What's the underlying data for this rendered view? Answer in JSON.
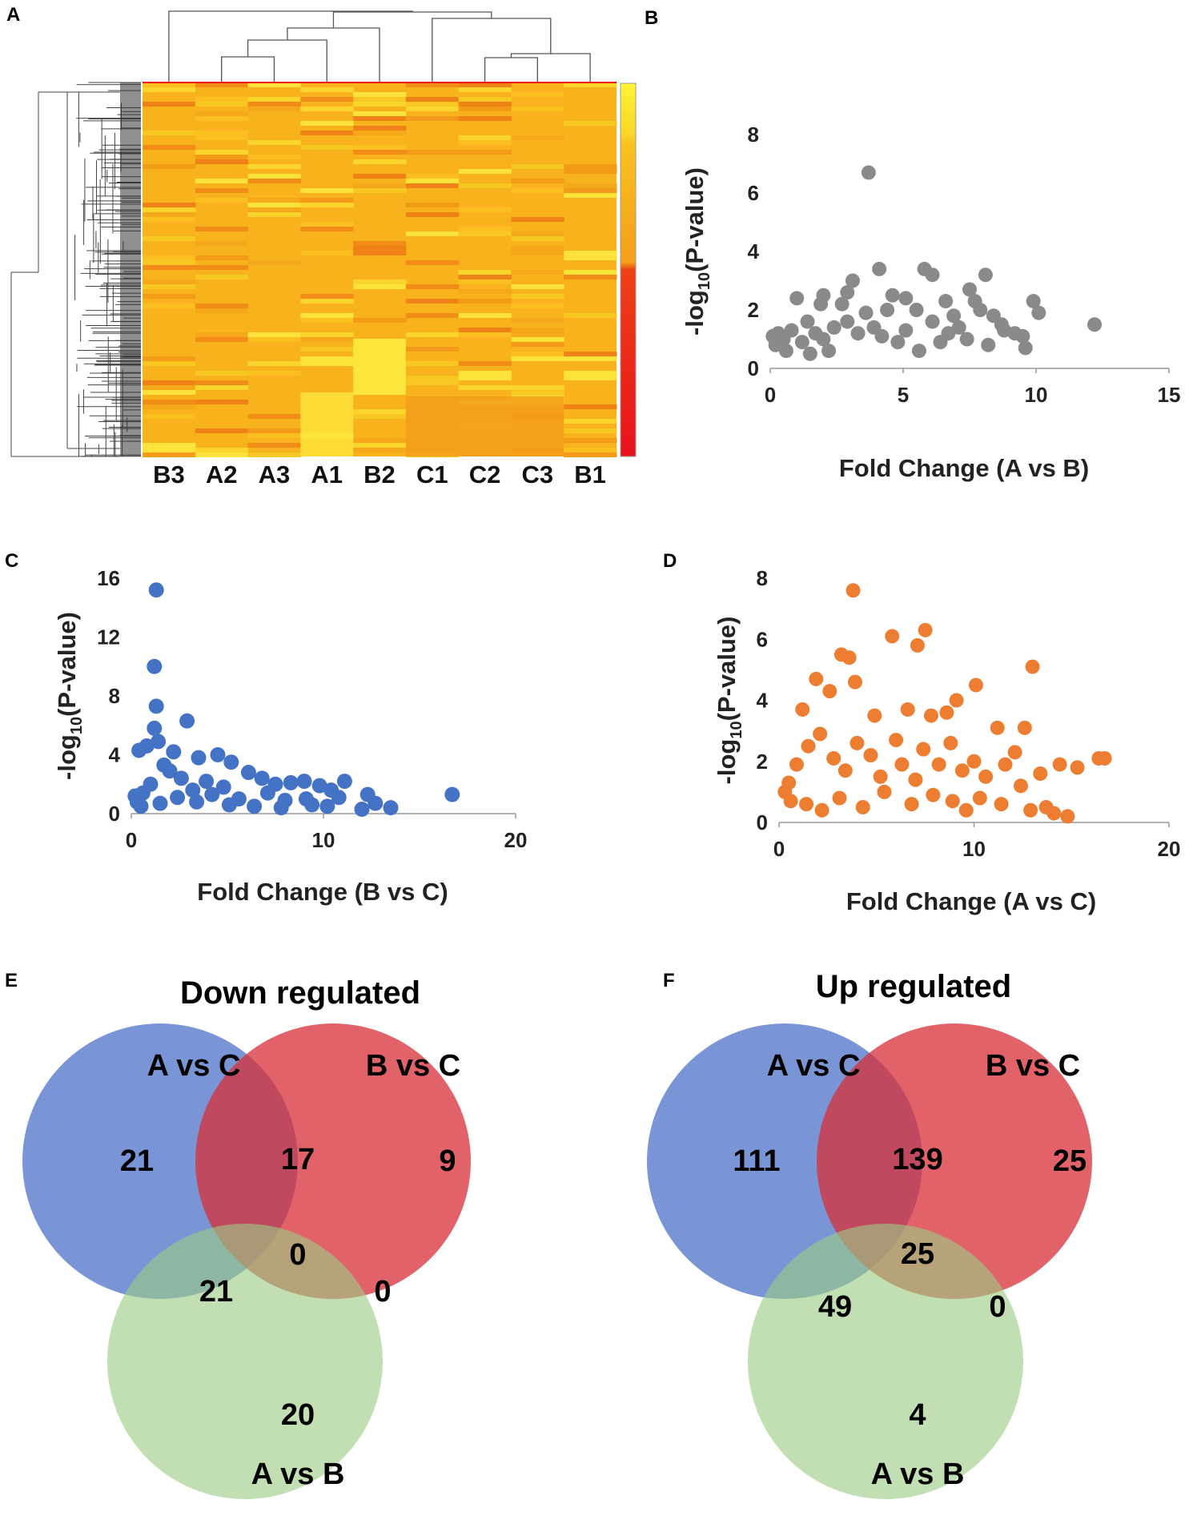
{
  "panel_labels": {
    "A": "A",
    "B": "B",
    "C": "C",
    "D": "D",
    "E": "E",
    "F": "F"
  },
  "colors": {
    "gray": "#8a8a8a",
    "blue": "#4472c4",
    "orange": "#ed7d31",
    "venn_blue": "#4f74c9",
    "venn_red": "#d8303a",
    "venn_green": "#9bcc84",
    "heat_low": "#e8121c",
    "heat_mid": "#f59e1a",
    "heat_high": "#fff433"
  },
  "chart_data": [
    {
      "id": "A",
      "type": "heatmap",
      "title": "",
      "columns": [
        "B3",
        "A2",
        "A3",
        "A1",
        "B2",
        "C1",
        "C2",
        "C3",
        "B1"
      ],
      "column_dendrogram_order": [
        "B3",
        "A2",
        "A3",
        "A1",
        "B2",
        "C1",
        "C2",
        "C3",
        "B1"
      ],
      "color_scale": [
        "#e8121c",
        "#f59e1a",
        "#fff433"
      ],
      "values": []
    },
    {
      "id": "B",
      "type": "scatter",
      "title": "",
      "xlabel": "Fold Change (A vs B)",
      "ylabel_main": "-log",
      "ylabel_sub": "10",
      "ylabel_tail": "(P-value)",
      "xlim": [
        0,
        15
      ],
      "ylim": [
        0,
        8
      ],
      "xticks": [
        0,
        5,
        10,
        15
      ],
      "yticks": [
        0,
        2,
        4,
        6,
        8
      ],
      "color": "#8a8a8a",
      "points": [
        [
          3.7,
          6.7
        ],
        [
          4.1,
          3.4
        ],
        [
          5.8,
          3.4
        ],
        [
          6.1,
          3.2
        ],
        [
          8.1,
          3.2
        ],
        [
          3.1,
          3.0
        ],
        [
          2.9,
          2.6
        ],
        [
          7.5,
          2.7
        ],
        [
          12.2,
          1.5
        ],
        [
          9.9,
          2.3
        ],
        [
          10.1,
          1.9
        ],
        [
          9.6,
          0.7
        ],
        [
          9.5,
          1.1
        ],
        [
          8.4,
          1.8
        ],
        [
          7.7,
          2.3
        ],
        [
          7.9,
          2.0
        ],
        [
          6.6,
          2.3
        ],
        [
          6.9,
          1.8
        ],
        [
          5.1,
          2.4
        ],
        [
          4.6,
          2.5
        ],
        [
          2.0,
          2.5
        ],
        [
          1.0,
          2.4
        ],
        [
          1.9,
          2.2
        ],
        [
          2.2,
          0.6
        ],
        [
          2.7,
          2.2
        ],
        [
          3.6,
          1.9
        ],
        [
          4.4,
          2.0
        ],
        [
          5.5,
          2.0
        ],
        [
          6.1,
          1.6
        ],
        [
          7.1,
          1.4
        ],
        [
          8.7,
          1.5
        ],
        [
          9.2,
          1.2
        ],
        [
          4.8,
          0.9
        ],
        [
          5.6,
          0.6
        ],
        [
          6.4,
          0.9
        ],
        [
          7.4,
          1.0
        ],
        [
          8.2,
          0.8
        ],
        [
          3.3,
          1.2
        ],
        [
          2.4,
          1.4
        ],
        [
          1.4,
          1.6
        ],
        [
          1.2,
          0.9
        ],
        [
          0.8,
          1.3
        ],
        [
          0.5,
          1.0
        ],
        [
          0.3,
          1.2
        ],
        [
          0.2,
          0.8
        ],
        [
          0.1,
          1.1
        ],
        [
          0.6,
          0.6
        ],
        [
          1.5,
          0.5
        ],
        [
          1.7,
          1.2
        ],
        [
          2.0,
          1.0
        ],
        [
          2.9,
          1.6
        ],
        [
          3.9,
          1.4
        ],
        [
          4.2,
          1.1
        ],
        [
          5.1,
          1.3
        ],
        [
          6.7,
          1.2
        ],
        [
          8.8,
          1.3
        ]
      ]
    },
    {
      "id": "C",
      "type": "scatter",
      "title": "",
      "xlabel": "Fold Change (B vs C)",
      "ylabel_main": "-log",
      "ylabel_sub": "10",
      "ylabel_tail": "(P-value)",
      "xlim": [
        0,
        20
      ],
      "ylim": [
        0,
        16
      ],
      "xticks": [
        0,
        10,
        20
      ],
      "yticks": [
        0,
        4,
        8,
        12,
        16
      ],
      "color": "#4472c4",
      "points": [
        [
          1.3,
          15.2
        ],
        [
          1.2,
          10.0
        ],
        [
          1.3,
          7.3
        ],
        [
          2.9,
          6.3
        ],
        [
          1.2,
          5.8
        ],
        [
          1.4,
          4.9
        ],
        [
          0.8,
          4.6
        ],
        [
          0.4,
          4.3
        ],
        [
          2.2,
          4.2
        ],
        [
          3.5,
          3.8
        ],
        [
          4.5,
          4.0
        ],
        [
          5.2,
          3.5
        ],
        [
          6.1,
          2.8
        ],
        [
          6.8,
          2.4
        ],
        [
          7.5,
          2.0
        ],
        [
          8.3,
          2.1
        ],
        [
          9.0,
          2.2
        ],
        [
          9.8,
          1.9
        ],
        [
          10.4,
          1.6
        ],
        [
          11.1,
          2.2
        ],
        [
          12.3,
          1.3
        ],
        [
          12.7,
          0.7
        ],
        [
          13.5,
          0.4
        ],
        [
          12.0,
          0.3
        ],
        [
          16.7,
          1.3
        ],
        [
          10.8,
          1.1
        ],
        [
          9.4,
          0.6
        ],
        [
          8.0,
          0.9
        ],
        [
          7.1,
          1.4
        ],
        [
          5.6,
          1.0
        ],
        [
          4.8,
          1.8
        ],
        [
          3.9,
          2.2
        ],
        [
          3.2,
          1.6
        ],
        [
          2.6,
          2.4
        ],
        [
          2.0,
          2.9
        ],
        [
          1.7,
          3.3
        ],
        [
          1.0,
          2.0
        ],
        [
          0.6,
          1.4
        ],
        [
          0.3,
          0.8
        ],
        [
          0.2,
          1.2
        ],
        [
          0.5,
          0.5
        ],
        [
          1.5,
          0.7
        ],
        [
          2.4,
          1.1
        ],
        [
          3.4,
          0.8
        ],
        [
          4.2,
          1.3
        ],
        [
          5.1,
          0.6
        ],
        [
          6.4,
          0.5
        ],
        [
          7.8,
          0.4
        ],
        [
          9.1,
          1.0
        ],
        [
          10.2,
          0.5
        ]
      ]
    },
    {
      "id": "D",
      "type": "scatter",
      "title": "",
      "xlabel": "Fold Change (A vs C)",
      "ylabel_main": "-log",
      "ylabel_sub": "10",
      "ylabel_tail": "(P-value)",
      "xlim": [
        0,
        20
      ],
      "ylim": [
        0,
        8
      ],
      "xticks": [
        0,
        10,
        20
      ],
      "yticks": [
        0,
        2,
        4,
        6,
        8
      ],
      "color": "#ed7d31",
      "points": [
        [
          3.8,
          7.6
        ],
        [
          7.5,
          6.3
        ],
        [
          5.8,
          6.1
        ],
        [
          7.1,
          5.8
        ],
        [
          3.2,
          5.5
        ],
        [
          3.6,
          5.4
        ],
        [
          13.0,
          5.1
        ],
        [
          1.9,
          4.7
        ],
        [
          2.6,
          4.3
        ],
        [
          3.9,
          4.6
        ],
        [
          10.1,
          4.5
        ],
        [
          9.1,
          4.0
        ],
        [
          1.2,
          3.7
        ],
        [
          4.9,
          3.5
        ],
        [
          6.6,
          3.7
        ],
        [
          7.8,
          3.5
        ],
        [
          8.6,
          3.6
        ],
        [
          11.2,
          3.1
        ],
        [
          12.6,
          3.1
        ],
        [
          12.1,
          2.3
        ],
        [
          16.4,
          2.1
        ],
        [
          16.7,
          2.1
        ],
        [
          15.3,
          1.8
        ],
        [
          14.4,
          1.9
        ],
        [
          14.8,
          0.2
        ],
        [
          14.1,
          0.3
        ],
        [
          13.7,
          0.5
        ],
        [
          12.9,
          0.4
        ],
        [
          11.4,
          0.6
        ],
        [
          10.3,
          0.8
        ],
        [
          9.6,
          0.4
        ],
        [
          8.9,
          0.7
        ],
        [
          7.9,
          0.9
        ],
        [
          6.8,
          0.6
        ],
        [
          5.4,
          1.0
        ],
        [
          4.3,
          0.5
        ],
        [
          3.1,
          0.8
        ],
        [
          2.2,
          0.4
        ],
        [
          1.4,
          0.6
        ],
        [
          0.6,
          0.7
        ],
        [
          0.3,
          1.0
        ],
        [
          0.5,
          1.3
        ],
        [
          0.9,
          1.9
        ],
        [
          1.5,
          2.5
        ],
        [
          2.1,
          2.9
        ],
        [
          2.8,
          2.1
        ],
        [
          3.4,
          1.7
        ],
        [
          4.0,
          2.6
        ],
        [
          4.7,
          2.2
        ],
        [
          5.2,
          1.5
        ],
        [
          6.0,
          2.7
        ],
        [
          6.3,
          1.9
        ],
        [
          7.0,
          1.4
        ],
        [
          7.4,
          2.4
        ],
        [
          8.2,
          1.9
        ],
        [
          8.8,
          2.6
        ],
        [
          9.4,
          1.7
        ],
        [
          10.0,
          2.0
        ],
        [
          10.6,
          1.5
        ],
        [
          11.6,
          1.9
        ],
        [
          12.4,
          1.2
        ],
        [
          13.4,
          1.6
        ]
      ]
    }
  ],
  "venn_e": {
    "title": "Down regulated",
    "set_a": "A vs C",
    "set_b": "B vs C",
    "set_c": "A vs B",
    "only_a": "21",
    "only_b": "9",
    "only_c": "20",
    "ab": "17",
    "ac": "21",
    "bc": "0",
    "abc": "0"
  },
  "venn_f": {
    "title": "Up regulated",
    "set_a": "A vs C",
    "set_b": "B vs C",
    "set_c": "A vs B",
    "only_a": "111",
    "only_b": "25",
    "only_c": "4",
    "ab": "139",
    "ac": "49",
    "bc": "0",
    "abc": "25"
  }
}
